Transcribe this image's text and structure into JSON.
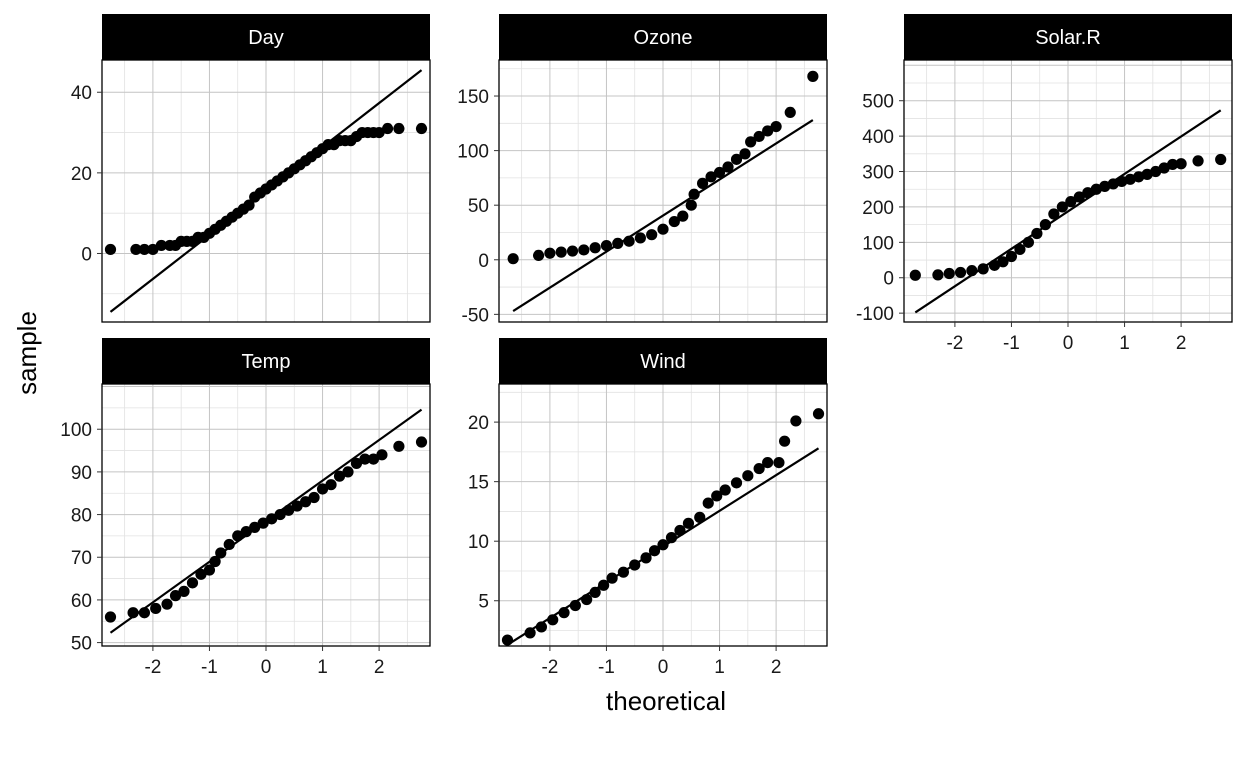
{
  "chart_data": {
    "type": "scatter",
    "xlabel": "theoretical",
    "ylabel": "sample",
    "grid": true,
    "legend": "none",
    "panels": [
      {
        "name": "Day",
        "xlim": [
          -2.9,
          2.9
        ],
        "ylim": [
          -17,
          48
        ],
        "xticks": [],
        "yticks": [
          0,
          20,
          40
        ],
        "line": {
          "x": [
            -2.75,
            2.75
          ],
          "y": [
            -14.5,
            45.5
          ]
        },
        "points": [
          [
            -2.75,
            1
          ],
          [
            -2.3,
            1
          ],
          [
            -2.15,
            1
          ],
          [
            -2.0,
            1
          ],
          [
            -1.85,
            2
          ],
          [
            -1.7,
            2
          ],
          [
            -1.6,
            2
          ],
          [
            -1.5,
            3
          ],
          [
            -1.4,
            3
          ],
          [
            -1.3,
            3
          ],
          [
            -1.2,
            4
          ],
          [
            -1.1,
            4
          ],
          [
            -1.0,
            5
          ],
          [
            -0.9,
            6
          ],
          [
            -0.8,
            7
          ],
          [
            -0.7,
            8
          ],
          [
            -0.6,
            9
          ],
          [
            -0.5,
            10
          ],
          [
            -0.4,
            11
          ],
          [
            -0.3,
            12
          ],
          [
            -0.2,
            14
          ],
          [
            -0.1,
            15
          ],
          [
            0.0,
            16
          ],
          [
            0.1,
            17
          ],
          [
            0.2,
            18
          ],
          [
            0.3,
            19
          ],
          [
            0.4,
            20
          ],
          [
            0.5,
            21
          ],
          [
            0.6,
            22
          ],
          [
            0.7,
            23
          ],
          [
            0.8,
            24
          ],
          [
            0.9,
            25
          ],
          [
            1.0,
            26
          ],
          [
            1.1,
            27
          ],
          [
            1.2,
            27
          ],
          [
            1.3,
            28
          ],
          [
            1.4,
            28
          ],
          [
            1.5,
            28
          ],
          [
            1.6,
            29
          ],
          [
            1.7,
            30
          ],
          [
            1.8,
            30
          ],
          [
            1.9,
            30
          ],
          [
            2.0,
            30
          ],
          [
            2.15,
            31
          ],
          [
            2.35,
            31
          ],
          [
            2.75,
            31
          ]
        ]
      },
      {
        "name": "Ozone",
        "xlim": [
          -2.9,
          2.9
        ],
        "ylim": [
          -57,
          183
        ],
        "xticks": [],
        "yticks": [
          -50,
          0,
          50,
          100,
          150
        ],
        "line": {
          "x": [
            -2.65,
            2.65
          ],
          "y": [
            -47,
            128
          ]
        },
        "points": [
          [
            -2.65,
            1
          ],
          [
            -2.2,
            4
          ],
          [
            -2.0,
            6
          ],
          [
            -1.8,
            7
          ],
          [
            -1.6,
            8
          ],
          [
            -1.4,
            9
          ],
          [
            -1.2,
            11
          ],
          [
            -1.0,
            13
          ],
          [
            -0.8,
            15
          ],
          [
            -0.6,
            17
          ],
          [
            -0.4,
            20
          ],
          [
            -0.2,
            23
          ],
          [
            0.0,
            28
          ],
          [
            0.2,
            35
          ],
          [
            0.35,
            40
          ],
          [
            0.5,
            50
          ],
          [
            0.55,
            60
          ],
          [
            0.7,
            70
          ],
          [
            0.85,
            76
          ],
          [
            1.0,
            80
          ],
          [
            1.15,
            85
          ],
          [
            1.3,
            92
          ],
          [
            1.45,
            97
          ],
          [
            1.55,
            108
          ],
          [
            1.7,
            113
          ],
          [
            1.85,
            118
          ],
          [
            2.0,
            122
          ],
          [
            2.25,
            135
          ],
          [
            2.65,
            168
          ]
        ]
      },
      {
        "name": "Solar.R",
        "xlim": [
          -2.9,
          2.9
        ],
        "ylim": [
          -125,
          615
        ],
        "xticks": [
          -2,
          -1,
          0,
          1,
          2
        ],
        "yticks": [
          -100,
          0,
          100,
          200,
          300,
          400,
          500
        ],
        "line": {
          "x": [
            -2.7,
            2.7
          ],
          "y": [
            -98,
            473
          ]
        },
        "points": [
          [
            -2.7,
            7
          ],
          [
            -2.3,
            8
          ],
          [
            -2.1,
            12
          ],
          [
            -1.9,
            15
          ],
          [
            -1.7,
            20
          ],
          [
            -1.5,
            25
          ],
          [
            -1.3,
            35
          ],
          [
            -1.15,
            45
          ],
          [
            -1.0,
            60
          ],
          [
            -0.85,
            80
          ],
          [
            -0.7,
            100
          ],
          [
            -0.55,
            125
          ],
          [
            -0.4,
            150
          ],
          [
            -0.25,
            180
          ],
          [
            -0.1,
            200
          ],
          [
            0.05,
            215
          ],
          [
            0.2,
            228
          ],
          [
            0.35,
            240
          ],
          [
            0.5,
            250
          ],
          [
            0.65,
            258
          ],
          [
            0.8,
            265
          ],
          [
            0.95,
            272
          ],
          [
            1.1,
            278
          ],
          [
            1.25,
            285
          ],
          [
            1.4,
            292
          ],
          [
            1.55,
            300
          ],
          [
            1.7,
            310
          ],
          [
            1.85,
            320
          ],
          [
            2.0,
            322
          ],
          [
            2.3,
            330
          ],
          [
            2.7,
            334
          ]
        ]
      },
      {
        "name": "Temp",
        "xlim": [
          -2.9,
          2.9
        ],
        "ylim": [
          49.2,
          110.6
        ],
        "xticks": [
          -2,
          -1,
          0,
          1,
          2
        ],
        "yticks": [
          50,
          60,
          70,
          80,
          90,
          100
        ],
        "line": {
          "x": [
            -2.75,
            2.75
          ],
          "y": [
            52.3,
            104.6
          ]
        },
        "points": [
          [
            -2.75,
            56
          ],
          [
            -2.35,
            57
          ],
          [
            -2.15,
            57
          ],
          [
            -1.95,
            58
          ],
          [
            -1.75,
            59
          ],
          [
            -1.6,
            61
          ],
          [
            -1.45,
            62
          ],
          [
            -1.3,
            64
          ],
          [
            -1.15,
            66
          ],
          [
            -1.0,
            67
          ],
          [
            -0.9,
            69
          ],
          [
            -0.8,
            71
          ],
          [
            -0.65,
            73
          ],
          [
            -0.5,
            75
          ],
          [
            -0.35,
            76
          ],
          [
            -0.2,
            77
          ],
          [
            -0.05,
            78
          ],
          [
            0.1,
            79
          ],
          [
            0.25,
            80
          ],
          [
            0.4,
            81
          ],
          [
            0.55,
            82
          ],
          [
            0.7,
            83
          ],
          [
            0.85,
            84
          ],
          [
            1.0,
            86
          ],
          [
            1.15,
            87
          ],
          [
            1.3,
            89
          ],
          [
            1.45,
            90
          ],
          [
            1.6,
            92
          ],
          [
            1.75,
            93
          ],
          [
            1.9,
            93
          ],
          [
            2.05,
            94
          ],
          [
            2.35,
            96
          ],
          [
            2.75,
            97
          ]
        ]
      },
      {
        "name": "Wind",
        "xlim": [
          -2.9,
          2.9
        ],
        "ylim": [
          1.2,
          23.2
        ],
        "xticks": [
          -2,
          -1,
          0,
          1,
          2
        ],
        "yticks": [
          5,
          10,
          15,
          20
        ],
        "line": {
          "x": [
            -2.75,
            2.75
          ],
          "y": [
            1.3,
            17.8
          ]
        },
        "points": [
          [
            -2.75,
            1.7
          ],
          [
            -2.35,
            2.3
          ],
          [
            -2.15,
            2.8
          ],
          [
            -1.95,
            3.4
          ],
          [
            -1.75,
            4.0
          ],
          [
            -1.55,
            4.6
          ],
          [
            -1.35,
            5.1
          ],
          [
            -1.2,
            5.7
          ],
          [
            -1.05,
            6.3
          ],
          [
            -0.9,
            6.9
          ],
          [
            -0.7,
            7.4
          ],
          [
            -0.5,
            8.0
          ],
          [
            -0.3,
            8.6
          ],
          [
            -0.15,
            9.2
          ],
          [
            0.0,
            9.7
          ],
          [
            0.15,
            10.3
          ],
          [
            0.3,
            10.9
          ],
          [
            0.45,
            11.5
          ],
          [
            0.65,
            12.0
          ],
          [
            0.8,
            13.2
          ],
          [
            0.95,
            13.8
          ],
          [
            1.1,
            14.3
          ],
          [
            1.3,
            14.9
          ],
          [
            1.5,
            15.5
          ],
          [
            1.7,
            16.1
          ],
          [
            1.85,
            16.6
          ],
          [
            2.05,
            16.6
          ],
          [
            2.15,
            18.4
          ],
          [
            2.35,
            20.1
          ],
          [
            2.75,
            20.7
          ]
        ]
      }
    ]
  }
}
